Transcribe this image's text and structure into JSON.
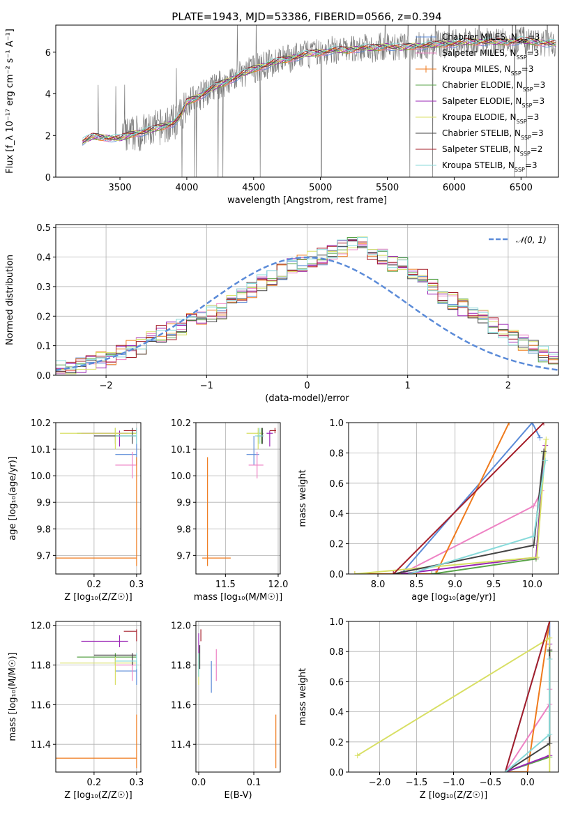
{
  "figure": {
    "title": "PLATE=1943, MJD=53386, FIBERID=0566, z=0.394"
  },
  "colors": {
    "Chabrier MILES": "#5b8bd8",
    "Salpeter MILES": "#ee82c4",
    "Kroupa MILES": "#ef7a1c",
    "Chabrier ELODIE": "#58a348",
    "Salpeter ELODIE": "#9a24b5",
    "Kroupa ELODIE": "#d8df64",
    "Chabrier STELIB": "#444444",
    "Salpeter STELIB": "#a51f2a",
    "Kroupa STELIB": "#87dada",
    "data": "#7a7a7a",
    "normal": "#5b8bd8"
  },
  "chart_data": [
    {
      "id": "spectrum",
      "type": "line",
      "xlabel": "wavelength [Angstrom, rest frame]",
      "ylabel": "Flux [f_λ 10⁻¹⁷ erg cm⁻² s⁻¹ A⁻¹]",
      "xlim": [
        3020,
        6780
      ],
      "ylim": [
        0,
        7.3
      ],
      "xticks": [
        "3500",
        "4000",
        "4500",
        "5000",
        "5500",
        "6000",
        "6500"
      ],
      "yticks": [
        "0",
        "2",
        "4",
        "6"
      ],
      "legend": [
        "Chabrier MILES, N_SSP=3",
        "Salpeter MILES, N_SSP=3",
        "Kroupa MILES, N_SSP=3",
        "Chabrier ELODIE, N_SSP=3",
        "Salpeter ELODIE, N_SSP=3",
        "Kroupa ELODIE, N_SSP=3",
        "Chabrier STELIB, N_SSP=3",
        "Salpeter STELIB, N_SSP=2",
        "Kroupa STELIB, N_SSP=3"
      ],
      "continuum": {
        "x": [
          3220,
          3300,
          3400,
          3500,
          3600,
          3700,
          3800,
          3900,
          3950,
          4000,
          4100,
          4200,
          4300,
          4400,
          4500,
          4600,
          4700,
          4800,
          4900,
          5000,
          5100,
          5200,
          5300,
          5400,
          5500,
          5600,
          5700,
          5800,
          5900,
          6000,
          6100,
          6200,
          6300,
          6400,
          6500,
          6600,
          6760
        ],
        "y": [
          1.7,
          1.95,
          1.9,
          1.85,
          2.1,
          2.2,
          2.4,
          2.6,
          2.9,
          3.6,
          3.9,
          4.3,
          4.6,
          4.9,
          5.2,
          5.4,
          5.6,
          5.75,
          5.9,
          6.0,
          6.1,
          6.1,
          6.2,
          6.2,
          6.3,
          6.2,
          6.3,
          6.3,
          6.4,
          6.4,
          6.5,
          6.5,
          6.5,
          6.5,
          6.55,
          6.5,
          6.4
        ]
      }
    },
    {
      "id": "residuals",
      "type": "histogram",
      "xlabel": "(data-model)/error",
      "ylabel": "Normed distribution",
      "xlim": [
        -2.5,
        2.5
      ],
      "ylim": [
        0,
        0.51
      ],
      "xticks": [
        "−2",
        "−1",
        "0",
        "1",
        "2"
      ],
      "yticks": [
        "0.0",
        "0.1",
        "0.2",
        "0.3",
        "0.4",
        "0.5"
      ],
      "legend": "𝒩(0, 1)",
      "bin_width": 0.1,
      "envelope": [
        0.02,
        0.025,
        0.03,
        0.04,
        0.05,
        0.06,
        0.075,
        0.09,
        0.1,
        0.12,
        0.14,
        0.15,
        0.16,
        0.18,
        0.2,
        0.21,
        0.22,
        0.25,
        0.27,
        0.29,
        0.31,
        0.33,
        0.35,
        0.37,
        0.38,
        0.39,
        0.4,
        0.41,
        0.43,
        0.45,
        0.44,
        0.42,
        0.4,
        0.38,
        0.37,
        0.35,
        0.33,
        0.3,
        0.27,
        0.25,
        0.23,
        0.21,
        0.19,
        0.17,
        0.15,
        0.13,
        0.11,
        0.09,
        0.07,
        0.06
      ]
    },
    {
      "id": "age-vs-Z",
      "type": "scatter",
      "xlabel": "Z [log₁₀(Z/Z☉)]",
      "ylabel": "age  [log₁₀(age/yr)]",
      "xlim": [
        0.11,
        0.31
      ],
      "ylim": [
        9.63,
        10.2
      ],
      "xticks": [
        "0.2",
        "0.3"
      ],
      "yticks": [
        "9.7",
        "9.8",
        "9.9",
        "10.0",
        "10.1",
        "10.2"
      ]
    },
    {
      "id": "age-vs-mass",
      "type": "scatter",
      "xlabel": "mass [log₁₀(M/M☉)]",
      "ylabel": "",
      "xlim": [
        11.22,
        12.02
      ],
      "ylim": [
        9.63,
        10.2
      ],
      "xticks": [
        "11.5",
        "12.0"
      ],
      "yticks": [
        "9.7",
        "9.8",
        "9.9",
        "10.0",
        "10.1",
        "10.2"
      ]
    },
    {
      "id": "weight-vs-age",
      "type": "line",
      "xlabel": "age  [log₁₀(age/yr)]",
      "ylabel": "mass weight",
      "xlim": [
        7.62,
        10.34
      ],
      "ylim": [
        0,
        1
      ],
      "xticks": [
        "8.0",
        "8.5",
        "9.0",
        "9.5",
        "10.0"
      ],
      "yticks": [
        "0.0",
        "0.2",
        "0.4",
        "0.6",
        "0.8",
        "1.0"
      ]
    },
    {
      "id": "mass-vs-Z",
      "type": "scatter",
      "xlabel": "Z [log₁₀(Z/Z☉)]",
      "ylabel": "mass [log₁₀(M/M☉)]",
      "xlim": [
        0.11,
        0.31
      ],
      "ylim": [
        11.26,
        12.02
      ],
      "xticks": [
        "0.2",
        "0.3"
      ],
      "yticks": [
        "11.4",
        "11.6",
        "11.8",
        "12.0"
      ]
    },
    {
      "id": "mass-vs-EBV",
      "type": "scatter",
      "xlabel": "E(B-V)",
      "ylabel": "",
      "xlim": [
        -0.005,
        0.148
      ],
      "ylim": [
        11.26,
        12.02
      ],
      "xticks": [
        "0.0",
        "0.1"
      ],
      "yticks": [
        "11.4",
        "11.6",
        "11.8",
        "12.0"
      ]
    },
    {
      "id": "weight-vs-Z",
      "type": "line",
      "xlabel": "Z [log₁₀(Z/Z☉)]",
      "ylabel": "mass weight",
      "xlim": [
        -2.42,
        0.42
      ],
      "ylim": [
        0,
        1
      ],
      "xticks": [
        "−2.0",
        "−1.5",
        "−1.0",
        "−0.5",
        "0.0"
      ],
      "yticks": [
        "0.0",
        "0.2",
        "0.4",
        "0.6",
        "0.8",
        "1.0"
      ]
    }
  ],
  "fits": [
    {
      "name": "Chabrier MILES",
      "Z": 0.3,
      "Zerr": [
        0.25,
        0.3
      ],
      "age": 10.08,
      "ageerr": [
        10.04,
        10.15
      ],
      "mass": 11.77,
      "masserr": [
        11.7,
        11.82
      ],
      "ebv": 0.023,
      "ebverr": [
        11.66,
        11.82
      ],
      "ages": [
        8.3,
        10.0,
        10.1
      ],
      "wa": [
        0.0,
        1.0,
        0.9
      ],
      "Zs": [
        -0.3,
        0.3,
        0.3
      ],
      "wz": [
        0.0,
        1.0,
        0.75
      ]
    },
    {
      "name": "Salpeter MILES",
      "Z": 0.29,
      "Zerr": [
        0.25,
        0.3
      ],
      "age": 10.04,
      "ageerr": [
        9.99,
        10.09
      ],
      "mass": 11.8,
      "masserr": [
        11.72,
        11.86
      ],
      "ebv": 0.032,
      "ebverr": [
        11.72,
        11.88
      ],
      "ages": [
        8.3,
        10.02,
        10.12
      ],
      "wa": [
        0.0,
        0.45,
        0.55
      ],
      "Zs": [
        -0.3,
        0.3,
        0.3
      ],
      "wz": [
        0.0,
        0.45,
        0.55
      ]
    },
    {
      "name": "Kroupa MILES",
      "Z": 0.3,
      "Zerr": [
        0.11,
        0.3
      ],
      "age": 9.69,
      "ageerr": [
        9.66,
        10.07
      ],
      "mass": 11.33,
      "masserr": [
        11.28,
        11.55
      ],
      "ebv": 0.14,
      "ebverr": [
        11.28,
        11.55
      ],
      "ages": [
        7.7,
        8.75,
        9.7
      ],
      "wa": [
        0.0,
        0.0,
        1.0
      ],
      "Zs": [
        -0.3,
        0.0,
        0.3
      ],
      "wz": [
        0.0,
        0.0,
        1.0
      ]
    },
    {
      "name": "Chabrier ELODIE",
      "Z": 0.25,
      "Zerr": [
        0.16,
        0.3
      ],
      "age": 10.16,
      "ageerr": [
        10.12,
        10.18
      ],
      "mass": 11.84,
      "masserr": [
        11.8,
        11.86
      ],
      "ebv": 0.0,
      "ebverr": [
        11.74,
        11.86
      ],
      "ages": [
        8.7,
        10.05,
        10.15
      ],
      "wa": [
        0.0,
        0.1,
        0.8
      ],
      "Zs": [
        -0.3,
        0.3,
        0.3
      ],
      "wz": [
        0.0,
        0.1,
        0.8
      ]
    },
    {
      "name": "Salpeter ELODIE",
      "Z": 0.26,
      "Zerr": [
        0.17,
        0.28
      ],
      "age": 10.16,
      "ageerr": [
        10.11,
        10.17
      ],
      "mass": 11.92,
      "masserr": [
        11.89,
        11.95
      ],
      "ebv": 0.0,
      "ebverr": [
        11.86,
        11.96
      ],
      "ages": [
        8.3,
        10.05,
        10.17
      ],
      "wa": [
        0.0,
        0.11,
        0.85
      ],
      "Zs": [
        -0.3,
        0.3,
        0.3
      ],
      "wz": [
        0.0,
        0.11,
        0.85
      ]
    },
    {
      "name": "Kroupa ELODIE",
      "Z": 0.25,
      "Zerr": [
        0.12,
        0.3
      ],
      "age": 10.16,
      "ageerr": [
        10.1,
        10.18
      ],
      "mass": 11.81,
      "masserr": [
        11.7,
        11.84
      ],
      "ebv": 0.0,
      "ebverr": [
        11.7,
        11.86
      ],
      "ages": [
        7.7,
        10.06,
        10.18
      ],
      "wa": [
        0.0,
        0.11,
        0.89
      ],
      "Zs": [
        -2.3,
        0.3,
        0.3
      ],
      "wz": [
        0.11,
        0.89,
        0.0
      ]
    },
    {
      "name": "Chabrier STELIB",
      "Z": 0.29,
      "Zerr": [
        0.2,
        0.3
      ],
      "age": 10.15,
      "ageerr": [
        10.12,
        10.18
      ],
      "mass": 11.85,
      "masserr": [
        11.8,
        11.86
      ],
      "ebv": 0.002,
      "ebverr": [
        11.78,
        11.9
      ],
      "ages": [
        8.2,
        10.02,
        10.15
      ],
      "wa": [
        0.0,
        0.19,
        0.81
      ],
      "Zs": [
        -0.3,
        0.3,
        0.3
      ],
      "wz": [
        0.0,
        0.19,
        0.81
      ]
    },
    {
      "name": "Salpeter STELIB",
      "Z": 0.3,
      "Zerr": [
        0.27,
        0.3
      ],
      "age": 10.17,
      "ageerr": [
        10.16,
        10.18
      ],
      "mass": 11.97,
      "masserr": [
        11.92,
        11.98
      ],
      "ebv": 0.004,
      "ebverr": [
        11.92,
        11.98
      ],
      "ages": [
        8.2,
        10.15
      ],
      "wa": [
        0.0,
        1.0
      ],
      "Zs": [
        -0.3,
        0.3
      ],
      "wz": [
        0.0,
        1.0
      ]
    },
    {
      "name": "Kroupa STELIB",
      "Z": 0.3,
      "Zerr": [
        0.25,
        0.3
      ],
      "age": 10.15,
      "ageerr": [
        10.12,
        10.18
      ],
      "mass": 11.82,
      "masserr": [
        11.78,
        11.86
      ],
      "ebv": 0.0,
      "ebverr": [
        11.74,
        11.86
      ],
      "ages": [
        8.4,
        10.02,
        10.17
      ],
      "wa": [
        0.0,
        0.25,
        0.75
      ],
      "Zs": [
        -0.3,
        0.3,
        0.3
      ],
      "wz": [
        0.0,
        0.25,
        0.75
      ]
    }
  ]
}
